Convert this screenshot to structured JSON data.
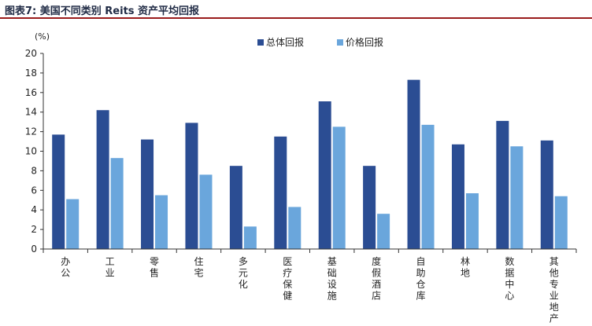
{
  "figure": {
    "title": "图表7:  美国不同类别 Reits 资产平均回报"
  },
  "chart_data": {
    "type": "bar",
    "title": "",
    "ylabel": "(%)",
    "xlabel": "",
    "ylim": [
      0,
      20
    ],
    "yticks": [
      0,
      2,
      4,
      6,
      8,
      10,
      12,
      14,
      16,
      18,
      20
    ],
    "grid": false,
    "legend_position": "top-right",
    "categories": [
      "办公",
      "工业",
      "零售",
      "住宅",
      "多元化",
      "医疗保健",
      "基础设施",
      "度假酒店",
      "自助仓库",
      "林地",
      "数据中心",
      "其他专业地产"
    ],
    "series": [
      {
        "name": "总体回报",
        "color": "#2b4d93",
        "values": [
          11.7,
          14.2,
          11.2,
          12.9,
          8.5,
          11.5,
          15.1,
          8.5,
          17.3,
          10.7,
          13.1,
          11.1
        ]
      },
      {
        "name": "价格回报",
        "color": "#6aa6dc",
        "values": [
          5.1,
          9.3,
          5.5,
          7.6,
          2.3,
          4.3,
          12.5,
          3.6,
          12.7,
          5.7,
          10.5,
          5.4
        ]
      }
    ]
  }
}
